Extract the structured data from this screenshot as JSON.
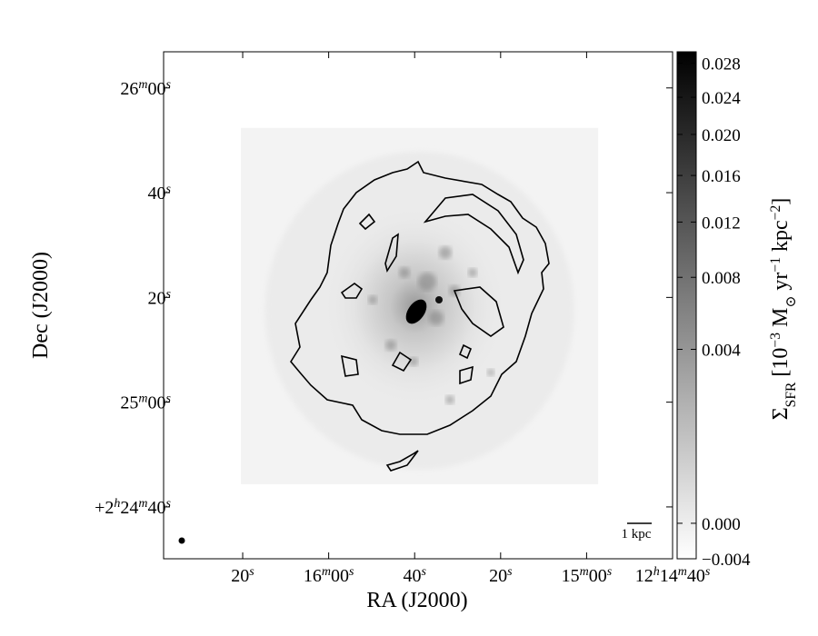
{
  "chart_data": {
    "type": "image",
    "x_label": "RA (J2000)",
    "y_label": "Dec (J2000)",
    "colorbar_label": [
      {
        "text": "Σ"
      },
      {
        "text": "SFR",
        "sub": true
      },
      {
        "text": " [10"
      },
      {
        "text": "−3",
        "sup": true
      },
      {
        "text": " M"
      },
      {
        "text": "⊙",
        "sub": true
      },
      {
        "text": " yr"
      },
      {
        "text": "−1",
        "sup": true
      },
      {
        "text": " kpc"
      },
      {
        "text": "−2",
        "sup": true
      },
      {
        "text": "]"
      }
    ],
    "scalebar_label": "1 kpc",
    "xlim": [
      44198.4,
      44080
    ],
    "ylim": [
      2.408361,
      2.43525
    ],
    "xticks": [
      {
        "value": 44180,
        "label": "20s"
      },
      {
        "value": 44160,
        "label": "16m00s"
      },
      {
        "value": 44140,
        "label": "40s"
      },
      {
        "value": 44120,
        "label": "20s"
      },
      {
        "value": 44100,
        "label": "15m00s"
      },
      {
        "value": 44080,
        "label": "12h14m40s"
      }
    ],
    "yticks": [
      {
        "value": 2.411111,
        "label": "+2h24m40s"
      },
      {
        "value": 2.416667,
        "label": "25m00s"
      },
      {
        "value": 2.422222,
        "label": "20s"
      },
      {
        "value": 2.427778,
        "label": "40s"
      },
      {
        "value": 2.433333,
        "label": "26m00s"
      }
    ],
    "extent": [
      44180.4,
      44097.3,
      2.412315,
      2.431215
    ],
    "cmap": "gray_r",
    "stretch": "sqrt",
    "clim": [
      -0.004,
      0.0294
    ],
    "colorbar_ticks": [
      {
        "value": -0.004,
        "label": "−0.004"
      },
      {
        "value": 0,
        "label": "0.000"
      },
      0.004,
      0.008,
      0.012,
      0.016,
      {
        "value": 0.02,
        "label": "0.020"
      },
      0.024,
      0.028
    ]
  }
}
